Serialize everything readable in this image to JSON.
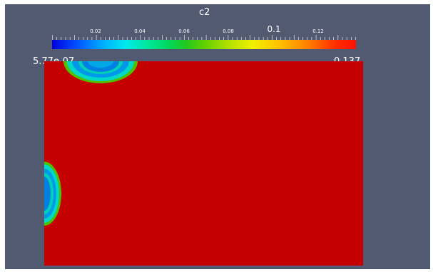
{
  "legend": {
    "title": "c2",
    "ticks": [
      "0.02",
      "0.04",
      "0.06",
      "0.08",
      "0.1",
      "0.12"
    ],
    "min_label": "5.77e-07",
    "max_label": "0.137"
  },
  "colors": {
    "background": "#525a72",
    "field": "#c40000",
    "low": "#0000e0",
    "high": "#ff1000"
  }
}
